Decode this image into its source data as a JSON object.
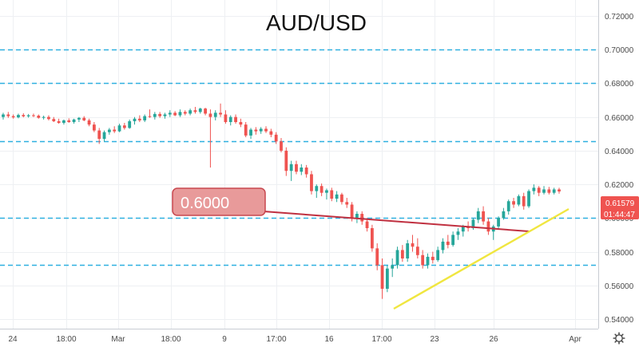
{
  "chart_data": {
    "type": "candlestick",
    "title": "AUD/USD",
    "y_ticks": [
      "0.72000",
      "0.70000",
      "0.68000",
      "0.66000",
      "0.64000",
      "0.62000",
      "0.60000",
      "0.58000",
      "0.56000",
      "0.54000"
    ],
    "ylim": [
      0.545,
      0.7245
    ],
    "x_ticks": [
      "24",
      "18:00",
      "Mar",
      "18:00",
      "9",
      "17:00",
      "16",
      "17:00",
      "23",
      "26",
      "Apr"
    ],
    "grid": true,
    "last_price": {
      "value": "0.61579",
      "countdown": "01:44:47"
    },
    "horizontal_levels": [
      0.7,
      0.68,
      0.6455,
      0.6,
      0.572
    ],
    "callout": {
      "label": "0.6000",
      "color": "#e06b6b"
    },
    "trendline_support": {
      "color": "#f0e640"
    },
    "candles": [
      [
        0.66,
        0.6625,
        0.6585,
        0.6615
      ],
      [
        0.6615,
        0.663,
        0.6595,
        0.6605
      ],
      [
        0.6605,
        0.6615,
        0.659,
        0.6598
      ],
      [
        0.6598,
        0.662,
        0.6592,
        0.6612
      ],
      [
        0.6612,
        0.6622,
        0.6598,
        0.6604
      ],
      [
        0.6604,
        0.6618,
        0.6596,
        0.661
      ],
      [
        0.661,
        0.662,
        0.66,
        0.6608
      ],
      [
        0.6608,
        0.6615,
        0.659,
        0.6595
      ],
      [
        0.6595,
        0.6608,
        0.6585,
        0.66
      ],
      [
        0.66,
        0.661,
        0.658,
        0.6588
      ],
      [
        0.6588,
        0.66,
        0.657,
        0.6575
      ],
      [
        0.6575,
        0.659,
        0.656,
        0.6565
      ],
      [
        0.6565,
        0.6585,
        0.6555,
        0.658
      ],
      [
        0.658,
        0.6592,
        0.6565,
        0.657
      ],
      [
        0.657,
        0.659,
        0.656,
        0.6585
      ],
      [
        0.6585,
        0.66,
        0.657,
        0.6595
      ],
      [
        0.6595,
        0.6605,
        0.6575,
        0.658
      ],
      [
        0.658,
        0.659,
        0.6545,
        0.6555
      ],
      [
        0.6555,
        0.657,
        0.651,
        0.652
      ],
      [
        0.652,
        0.6535,
        0.644,
        0.647
      ],
      [
        0.647,
        0.652,
        0.6455,
        0.651
      ],
      [
        0.651,
        0.6535,
        0.6495,
        0.6525
      ],
      [
        0.6525,
        0.6545,
        0.6505,
        0.6515
      ],
      [
        0.6515,
        0.656,
        0.651,
        0.655
      ],
      [
        0.655,
        0.6565,
        0.6525,
        0.6535
      ],
      [
        0.6535,
        0.6585,
        0.653,
        0.6575
      ],
      [
        0.6575,
        0.66,
        0.6555,
        0.659
      ],
      [
        0.659,
        0.661,
        0.657,
        0.658
      ],
      [
        0.658,
        0.6615,
        0.657,
        0.6605
      ],
      [
        0.6605,
        0.6645,
        0.6595,
        0.66
      ],
      [
        0.66,
        0.663,
        0.6585,
        0.6618
      ],
      [
        0.6618,
        0.663,
        0.6595,
        0.6605
      ],
      [
        0.6605,
        0.6625,
        0.659,
        0.6615
      ],
      [
        0.6615,
        0.664,
        0.66,
        0.6625
      ],
      [
        0.6625,
        0.6635,
        0.6605,
        0.661
      ],
      [
        0.661,
        0.6645,
        0.66,
        0.663
      ],
      [
        0.663,
        0.664,
        0.661,
        0.662
      ],
      [
        0.662,
        0.665,
        0.661,
        0.664
      ],
      [
        0.664,
        0.666,
        0.662,
        0.663
      ],
      [
        0.663,
        0.6655,
        0.662,
        0.665
      ],
      [
        0.665,
        0.6655,
        0.661,
        0.662
      ],
      [
        0.662,
        0.6645,
        0.63,
        0.66
      ],
      [
        0.66,
        0.664,
        0.658,
        0.6625
      ],
      [
        0.6625,
        0.668,
        0.66,
        0.6615
      ],
      [
        0.6615,
        0.664,
        0.656,
        0.657
      ],
      [
        0.657,
        0.661,
        0.655,
        0.66
      ],
      [
        0.66,
        0.6615,
        0.656,
        0.657
      ],
      [
        0.657,
        0.659,
        0.654,
        0.6555
      ],
      [
        0.6555,
        0.657,
        0.648,
        0.649
      ],
      [
        0.649,
        0.6535,
        0.647,
        0.6525
      ],
      [
        0.6525,
        0.654,
        0.6495,
        0.6515
      ],
      [
        0.6515,
        0.654,
        0.65,
        0.653
      ],
      [
        0.653,
        0.6545,
        0.6505,
        0.6515
      ],
      [
        0.6515,
        0.653,
        0.648,
        0.6495
      ],
      [
        0.6495,
        0.651,
        0.644,
        0.6455
      ],
      [
        0.6455,
        0.6475,
        0.639,
        0.64
      ],
      [
        0.64,
        0.642,
        0.625,
        0.628
      ],
      [
        0.628,
        0.634,
        0.622,
        0.632
      ],
      [
        0.632,
        0.634,
        0.626,
        0.6275
      ],
      [
        0.6275,
        0.632,
        0.6255,
        0.63
      ],
      [
        0.63,
        0.6315,
        0.624,
        0.626
      ],
      [
        0.626,
        0.628,
        0.614,
        0.616
      ],
      [
        0.616,
        0.62,
        0.612,
        0.619
      ],
      [
        0.619,
        0.6205,
        0.613,
        0.615
      ],
      [
        0.615,
        0.6175,
        0.611,
        0.6165
      ],
      [
        0.6165,
        0.618,
        0.61,
        0.6115
      ],
      [
        0.6115,
        0.616,
        0.6095,
        0.614
      ],
      [
        0.614,
        0.615,
        0.608,
        0.6095
      ],
      [
        0.6095,
        0.612,
        0.606,
        0.608
      ],
      [
        0.608,
        0.6095,
        0.598,
        0.6
      ],
      [
        0.6,
        0.604,
        0.597,
        0.6025
      ],
      [
        0.6025,
        0.604,
        0.596,
        0.598
      ],
      [
        0.598,
        0.6,
        0.592,
        0.594
      ],
      [
        0.594,
        0.596,
        0.58,
        0.582
      ],
      [
        0.582,
        0.585,
        0.569,
        0.572
      ],
      [
        0.572,
        0.576,
        0.552,
        0.558
      ],
      [
        0.558,
        0.572,
        0.556,
        0.57
      ],
      [
        0.57,
        0.576,
        0.565,
        0.572
      ],
      [
        0.572,
        0.583,
        0.57,
        0.581
      ],
      [
        0.581,
        0.584,
        0.574,
        0.576
      ],
      [
        0.576,
        0.587,
        0.574,
        0.585
      ],
      [
        0.585,
        0.59,
        0.58,
        0.583
      ],
      [
        0.583,
        0.588,
        0.576,
        0.578
      ],
      [
        0.578,
        0.581,
        0.57,
        0.572
      ],
      [
        0.572,
        0.579,
        0.57,
        0.577
      ],
      [
        0.577,
        0.58,
        0.573,
        0.575
      ],
      [
        0.575,
        0.583,
        0.574,
        0.581
      ],
      [
        0.581,
        0.588,
        0.579,
        0.586
      ],
      [
        0.586,
        0.59,
        0.582,
        0.584
      ],
      [
        0.584,
        0.592,
        0.583,
        0.59
      ],
      [
        0.59,
        0.594,
        0.587,
        0.592
      ],
      [
        0.592,
        0.596,
        0.589,
        0.595
      ],
      [
        0.595,
        0.598,
        0.592,
        0.594
      ],
      [
        0.594,
        0.6,
        0.593,
        0.599
      ],
      [
        0.599,
        0.606,
        0.597,
        0.604
      ],
      [
        0.604,
        0.607,
        0.596,
        0.598
      ],
      [
        0.598,
        0.6,
        0.59,
        0.592
      ],
      [
        0.592,
        0.596,
        0.587,
        0.595
      ],
      [
        0.595,
        0.601,
        0.593,
        0.6
      ],
      [
        0.6,
        0.606,
        0.599,
        0.604
      ],
      [
        0.604,
        0.611,
        0.602,
        0.61
      ],
      [
        0.61,
        0.612,
        0.606,
        0.608
      ],
      [
        0.608,
        0.614,
        0.607,
        0.613
      ],
      [
        0.613,
        0.615,
        0.605,
        0.607
      ],
      [
        0.607,
        0.617,
        0.606,
        0.616
      ],
      [
        0.616,
        0.62,
        0.614,
        0.618
      ],
      [
        0.618,
        0.619,
        0.613,
        0.615
      ],
      [
        0.615,
        0.619,
        0.614,
        0.617
      ],
      [
        0.617,
        0.6185,
        0.614,
        0.615
      ],
      [
        0.615,
        0.618,
        0.614,
        0.617
      ],
      [
        0.617,
        0.618,
        0.6145,
        0.6158
      ]
    ]
  },
  "colors": {
    "up": "#26a69a",
    "down": "#ef5350",
    "grid": "#eef0f3",
    "level": "#2fb0e0",
    "axis_text": "#4a4a4a",
    "title": "#111111",
    "price_tag": "#ef5350",
    "support": "#f0e640",
    "callout_fill": "#e89a9a",
    "callout_border": "#c7474f",
    "callout_line": "#c03040"
  },
  "icons": {
    "settings": "gear-icon"
  }
}
